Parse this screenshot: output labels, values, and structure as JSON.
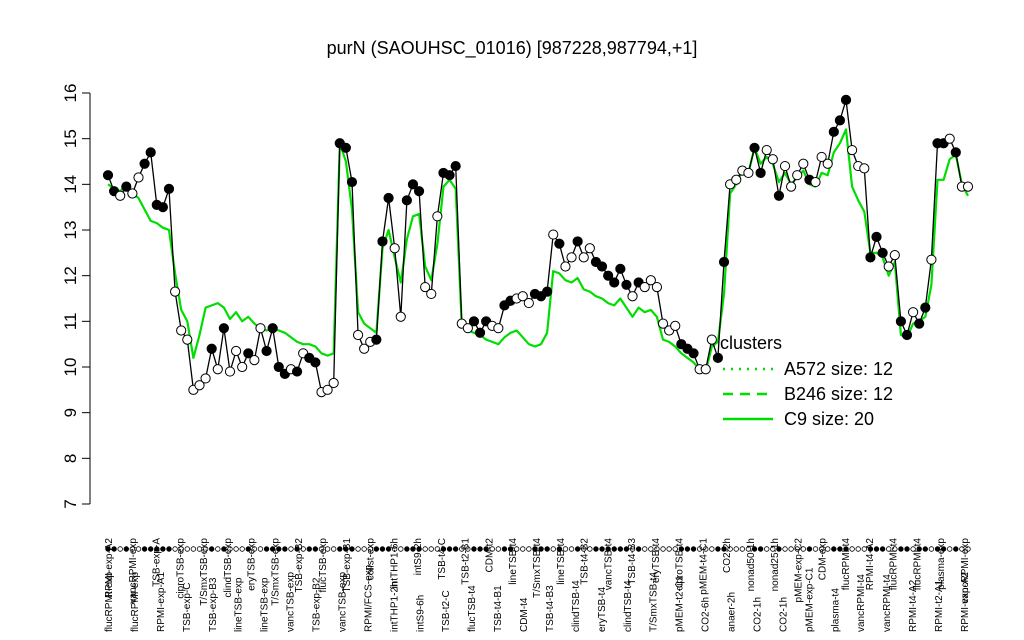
{
  "chart_data": {
    "type": "line",
    "title": "purN (SAOUHSC_01016) [987228,987794,+1]",
    "xlabel": "",
    "ylabel": "",
    "ylim": [
      7,
      16
    ],
    "yticks": [
      7,
      8,
      9,
      10,
      11,
      12,
      13,
      14,
      15,
      16
    ],
    "grid": false,
    "legend": {
      "title": "clusters",
      "placement": "right",
      "color": "#00dd00",
      "entries": [
        {
          "label": "A572 size: 12",
          "style": "dotted"
        },
        {
          "label": "B246 size: 12",
          "style": "dashed"
        },
        {
          "label": "C9 size: 20",
          "style": "solid"
        }
      ]
    },
    "tick_labels_top": [
      "RPMI-exp-A2",
      "vancRPMI-exp",
      "TSB-exp-A",
      "ciproTSB-exp",
      "T/SmxTSB-exp",
      "clindTSB-exp",
      "eryTSB-exp",
      "T/SmxTSB-exp",
      "TSB-exp-B2",
      "flucTSB-exp",
      "TSB-exp-B1",
      "colist-exp",
      "intTHP1-6h",
      "intS9-2h",
      "TSB-t4-C",
      "TSB-t2-B1",
      "CDM-t2",
      "lineTSB-t4",
      "T/SmxTSB-t4",
      "lineTSB-t4",
      "TSB-t4-B2",
      "vancTSB-t4",
      "TSB-t4-B3",
      "eryTSB-t4",
      "ciproTSB-t4",
      "pMEM-t4-C1",
      "CO2-2h",
      "nonad50-1h",
      "nonad25-1h",
      "pMEM-exp-C2",
      "CDM-exp",
      "flucRPMI-t4",
      "RPMI-t4-A2",
      "flucRPMI-t4",
      "flucRPMI-t4",
      "plasma-exp",
      "vancRPMI-exp"
    ],
    "tick_labels_bottom": [
      "flucRPMI-exp",
      "flucRPMI-exp",
      "RPMI-exp-A1",
      "TSB-exp-C",
      "TSB-exp-B3",
      "lineTSB-exp",
      "lineTSB-exp",
      "vancTSB-exp",
      "TSB-exp-B2",
      "vancTSB-exp",
      "RPMI/FCS-exp",
      "intTHP1-2h",
      "intS9-6h",
      "TSB-t2-C",
      "flucTSB-t4",
      "TSB-t4-B1",
      "CDM-t4",
      "TSB-t4-B3",
      "clindTSB-t4",
      "eryTSB-t4",
      "clindTSB-t4",
      "T/SmxTSB-t4",
      "pMEM-t2-C1",
      "CO2-6h",
      "anaer-2h",
      "CO2-1h",
      "CO2-1h",
      "pMEM-exp-C1",
      "plasma-t4",
      "vancRPMI-t4",
      "vancRPMI-t4",
      "RPMI-t4-A2",
      "RPMI-t2-A1",
      "RPMI-exp-A2"
    ],
    "series": [
      {
        "color": "#000000",
        "values": [
          14.2,
          13.85,
          13.75,
          13.95,
          13.8,
          14.15,
          14.45,
          14.7,
          13.55,
          13.5,
          13.9,
          11.65,
          10.8,
          10.6,
          9.5,
          9.6,
          9.75,
          10.4,
          9.95,
          10.85,
          9.9,
          10.35,
          10.0,
          10.3,
          10.15,
          10.85,
          10.35,
          10.85,
          10.0,
          9.85,
          9.95,
          9.9,
          10.3,
          10.2,
          10.1,
          9.45,
          9.5,
          9.65,
          14.9,
          14.8,
          14.05,
          10.7,
          10.4,
          10.55,
          10.6,
          12.75,
          13.7,
          12.6,
          11.1,
          13.65,
          14.0,
          13.85,
          11.75,
          11.6,
          13.3,
          14.25,
          14.2,
          14.4,
          10.95,
          10.85,
          11.0,
          10.75,
          11.0,
          10.9,
          10.85,
          11.35,
          11.45,
          11.5,
          11.55,
          11.4,
          11.6,
          11.55,
          11.65,
          12.9,
          12.7,
          12.2,
          12.4,
          12.75,
          12.4,
          12.6,
          12.3,
          12.2,
          12.0,
          11.85,
          12.15,
          11.8,
          11.55,
          11.85,
          11.75,
          11.9,
          11.75,
          10.95,
          10.8,
          10.9,
          10.5,
          10.4,
          10.3,
          9.95,
          9.95,
          10.6,
          10.2,
          12.3,
          14.0,
          14.1,
          14.3,
          14.25,
          14.8,
          14.25,
          14.75,
          14.55,
          13.75,
          14.4,
          13.95,
          14.2,
          14.45,
          14.1,
          14.05,
          14.6,
          14.45,
          15.15,
          15.4,
          15.85,
          14.75,
          14.4,
          14.35,
          12.4,
          12.85,
          12.5,
          12.2,
          12.45,
          11.0,
          10.7,
          11.2,
          10.95,
          11.3,
          12.35,
          14.9,
          14.9,
          15.0,
          14.7,
          13.95,
          13.95
        ],
        "filled": [
          true,
          true,
          false,
          true,
          false,
          false,
          true,
          true,
          true,
          true,
          true,
          false,
          false,
          false,
          false,
          false,
          false,
          true,
          false,
          true,
          false,
          false,
          false,
          true,
          false,
          false,
          true,
          true,
          true,
          true,
          false,
          true,
          false,
          true,
          true,
          false,
          false,
          false,
          true,
          true,
          true,
          false,
          false,
          false,
          true,
          true,
          true,
          false,
          false,
          true,
          true,
          true,
          false,
          false,
          false,
          true,
          true,
          true,
          false,
          false,
          true,
          true,
          true,
          false,
          false,
          true,
          true,
          false,
          false,
          false,
          true,
          true,
          true,
          false,
          true,
          false,
          false,
          true,
          false,
          false,
          true,
          true,
          true,
          true,
          true,
          true,
          false,
          true,
          false,
          false,
          false,
          false,
          false,
          false,
          true,
          true,
          true,
          false,
          false,
          false,
          true,
          true,
          false,
          false,
          false,
          false,
          true,
          true,
          false,
          false,
          true,
          false,
          false,
          false,
          false,
          true,
          false,
          false,
          false,
          true,
          true,
          true,
          false,
          false,
          false,
          true,
          true,
          true,
          false,
          false,
          true,
          true,
          false,
          true,
          true,
          false,
          true,
          true,
          false,
          true,
          false,
          false
        ],
        "name": ""
      },
      {
        "color": "#00dd00",
        "values": [
          14.0,
          13.9,
          13.85,
          14.0,
          13.8,
          13.7,
          13.45,
          13.2,
          13.15,
          13.05,
          13.0,
          12.05,
          11.25,
          11.0,
          10.2,
          10.7,
          11.3,
          11.35,
          11.4,
          11.3,
          11.05,
          11.2,
          11.0,
          11.1,
          10.95,
          10.85,
          10.8,
          10.85,
          10.8,
          10.75,
          10.65,
          10.55,
          10.5,
          10.5,
          10.45,
          10.3,
          10.25,
          10.3,
          14.9,
          14.5,
          13.45,
          11.2,
          10.95,
          10.85,
          10.75,
          12.6,
          13.0,
          12.4,
          11.85,
          12.8,
          13.3,
          13.35,
          12.2,
          11.9,
          12.7,
          13.95,
          14.1,
          13.9,
          10.9,
          10.8,
          10.75,
          10.7,
          10.6,
          10.55,
          10.5,
          10.65,
          10.75,
          10.8,
          10.65,
          10.5,
          10.45,
          10.5,
          10.75,
          12.1,
          12.05,
          11.9,
          11.85,
          11.95,
          11.7,
          11.65,
          11.55,
          11.5,
          11.4,
          11.35,
          11.5,
          11.3,
          11.1,
          11.3,
          11.2,
          11.25,
          11.1,
          10.6,
          10.55,
          10.45,
          10.3,
          10.2,
          10.1,
          9.95,
          9.9,
          10.45,
          10.55,
          11.6,
          13.8,
          14.0,
          14.3,
          14.25,
          14.8,
          14.45,
          14.6,
          14.45,
          14.05,
          14.25,
          14.0,
          14.15,
          14.3,
          14.0,
          13.95,
          14.25,
          14.2,
          14.7,
          14.9,
          15.2,
          13.95,
          13.65,
          13.4,
          12.5,
          12.5,
          12.4,
          12.0,
          12.3,
          10.7,
          10.65,
          10.95,
          11.0,
          11.1,
          11.8,
          14.1,
          14.1,
          14.55,
          14.65,
          14.0,
          13.75
        ],
        "name": ""
      }
    ]
  }
}
